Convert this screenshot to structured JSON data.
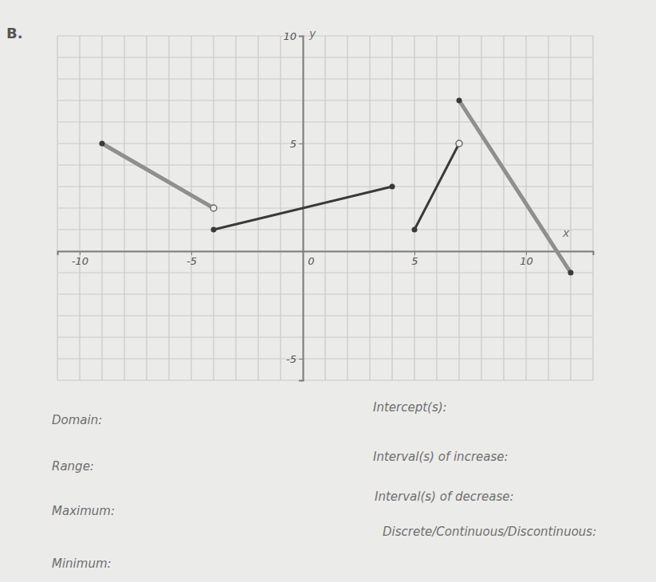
{
  "chart_data": {
    "type": "line",
    "title": "B.",
    "x_label": "x",
    "y_label": "y",
    "xlim": [
      -11,
      13
    ],
    "ylim": [
      -6,
      10
    ],
    "xticks": [
      -10,
      -5,
      0,
      5,
      10
    ],
    "yticks": [
      -5,
      5,
      10
    ],
    "xminor": [
      -11,
      -10,
      -9,
      -8,
      -7,
      -6,
      -5,
      -4,
      -3,
      -2,
      -1,
      0,
      1,
      2,
      3,
      4,
      5,
      6,
      7,
      8,
      9,
      10,
      11,
      12,
      13
    ],
    "yminor": [
      -6,
      -5,
      -4,
      -3,
      -2,
      -1,
      0,
      1,
      2,
      3,
      4,
      5,
      6,
      7,
      8,
      9,
      10
    ],
    "grid": true,
    "series": [
      {
        "type": "line",
        "color": "#8f8f8f",
        "x": [
          -9,
          -4
        ],
        "values": [
          5,
          2
        ]
      },
      {
        "type": "line",
        "color": "#3a3a3a",
        "x": [
          -4,
          4
        ],
        "values": [
          1,
          3
        ]
      },
      {
        "type": "line",
        "color": "#3a3a3a",
        "x": [
          5,
          7
        ],
        "values": [
          1,
          5
        ]
      },
      {
        "type": "line",
        "color": "#8f8f8f",
        "x": [
          7,
          12
        ],
        "values": [
          7,
          -1
        ]
      },
      {
        "type": "scatter",
        "marker": "closed",
        "color": "#3a3a3a",
        "x": [
          -9,
          -4,
          4,
          5,
          7,
          12
        ],
        "values": [
          5,
          1,
          3,
          1,
          7,
          -1
        ]
      },
      {
        "type": "scatter",
        "marker": "open",
        "color": "#6a6a6a",
        "x": [
          -4,
          7
        ],
        "values": [
          2,
          5
        ]
      }
    ]
  },
  "worksheet": {
    "left": [
      "Domain:",
      "Range:",
      "Maximum:",
      "Minimum:"
    ],
    "right": [
      "Intercept(s):",
      "Interval(s) of increase:",
      "Interval(s) of decrease:",
      "Discrete/Continuous/Discontinuous:"
    ]
  }
}
